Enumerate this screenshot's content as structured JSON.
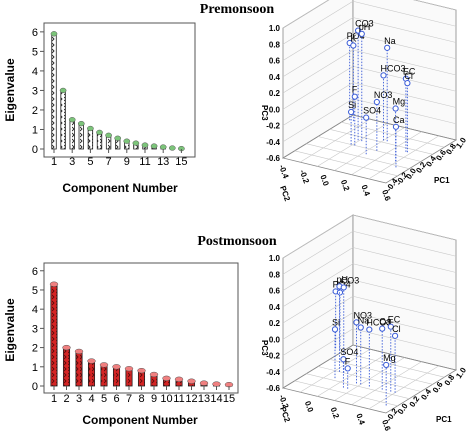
{
  "titles": {
    "top": "Premonsoon",
    "bottom": "Postmonsoon"
  },
  "chart_data": [
    {
      "type": "bar",
      "panel": "premonsoon-scree",
      "xlabel": "Component Number",
      "ylabel": "Eigenvalue",
      "categories": [
        "1",
        "2",
        "3",
        "4",
        "5",
        "6",
        "7",
        "8",
        "9",
        "10",
        "11",
        "12",
        "13",
        "14",
        "15"
      ],
      "x_tick_labels": [
        "1",
        "3",
        "5",
        "7",
        "9",
        "11",
        "13",
        "15"
      ],
      "values": [
        5.9,
        3.0,
        1.5,
        1.3,
        1.05,
        0.85,
        0.7,
        0.55,
        0.4,
        0.3,
        0.2,
        0.15,
        0.1,
        0.05,
        0.02
      ],
      "y_ticks": [
        0,
        1,
        2,
        3,
        4,
        5,
        6
      ],
      "ylim": [
        0,
        6.3
      ],
      "grid": false,
      "bar_color": "#ffffff",
      "marker_color": "#7cc47a"
    },
    {
      "type": "scatter3d",
      "panel": "premonsoon-loadings",
      "xlabel": "PC1",
      "ylabel": "PC2",
      "zlabel": "PC3",
      "z_ticks": [
        "-0.6",
        "-0.4",
        "-0.2",
        "0.0",
        "0.2",
        "0.4",
        "0.6",
        "0.8",
        "1.0"
      ],
      "x_ticks": [
        "-0.4",
        "-0.2",
        "0.0",
        "0.2",
        "0.4",
        "0.6",
        "0.8",
        "1.0"
      ],
      "y_ticks": [
        "-0.4",
        "-0.2",
        "0.0",
        "0.2",
        "0.4",
        "0.6"
      ],
      "marker_color": "#3a5cd8",
      "points": [
        {
          "label": "PO4",
          "pc1": -0.35,
          "pc2": 0.5,
          "pc3": 0.35
        },
        {
          "label": "K",
          "pc1": -0.3,
          "pc2": 0.5,
          "pc3": 0.33
        },
        {
          "label": "CO3",
          "pc1": 0.05,
          "pc2": 0.2,
          "pc3": 0.75
        },
        {
          "label": "pH",
          "pc1": 0.1,
          "pc2": 0.2,
          "pc3": 0.72
        },
        {
          "label": "Na",
          "pc1": 0.35,
          "pc2": 0.3,
          "pc3": 0.55
        },
        {
          "label": "EC",
          "pc1": 0.7,
          "pc2": 0.2,
          "pc3": 0.3
        },
        {
          "label": "Cl",
          "pc1": 0.72,
          "pc2": 0.2,
          "pc3": 0.25
        },
        {
          "label": "HCO3",
          "pc1": 0.3,
          "pc2": 0.3,
          "pc3": 0.2
        },
        {
          "label": "Mg",
          "pc1": 0.75,
          "pc2": 0.0,
          "pc3": 0.05
        },
        {
          "label": "F",
          "pc1": 0.1,
          "pc2": 0.1,
          "pc3": 0.0
        },
        {
          "label": "NO3",
          "pc1": 0.4,
          "pc2": 0.1,
          "pc3": 0.0
        },
        {
          "label": "Ca",
          "pc1": 0.85,
          "pc2": -0.1,
          "pc3": -0.1
        },
        {
          "label": "Si",
          "pc1": 0.05,
          "pc2": 0.1,
          "pc3": -0.2
        },
        {
          "label": "SO4",
          "pc1": 0.35,
          "pc2": 0.0,
          "pc3": -0.15
        }
      ]
    },
    {
      "type": "bar",
      "panel": "postmonsoon-scree",
      "xlabel": "Component Number",
      "ylabel": "Eigenvalue",
      "categories": [
        "1",
        "2",
        "3",
        "4",
        "5",
        "6",
        "7",
        "8",
        "9",
        "10",
        "11",
        "12",
        "13",
        "14",
        "15"
      ],
      "x_tick_labels": [
        "1",
        "2",
        "3",
        "4",
        "5",
        "6",
        "7",
        "8",
        "9",
        "10",
        "11",
        "12",
        "13",
        "14",
        "15"
      ],
      "values": [
        5.3,
        2.0,
        1.8,
        1.3,
        1.1,
        1.0,
        0.9,
        0.8,
        0.6,
        0.4,
        0.35,
        0.25,
        0.15,
        0.1,
        0.07
      ],
      "y_ticks": [
        0,
        1,
        2,
        3,
        4,
        5,
        6
      ],
      "ylim": [
        0,
        6.3
      ],
      "grid": false,
      "bar_color": "#d42424",
      "marker_color": "#f08080"
    },
    {
      "type": "scatter3d",
      "panel": "postmonsoon-loadings",
      "xlabel": "PC1",
      "ylabel": "PC2",
      "zlabel": "PC3",
      "z_ticks": [
        "-0.6",
        "-0.4",
        "-0.2",
        "0.0",
        "0.2",
        "0.4",
        "0.6",
        "0.8",
        "1.0"
      ],
      "x_ticks": [
        "-0.2",
        "0.0",
        "0.2",
        "0.4",
        "0.6",
        "0.8",
        "1.0"
      ],
      "y_ticks": [
        "-0.2",
        "0.0",
        "0.2",
        "0.4",
        "0.6"
      ],
      "marker_color": "#3a5cd8",
      "points": [
        {
          "label": "PO4",
          "pc1": -0.3,
          "pc2": 0.5,
          "pc3": 0.1
        },
        {
          "label": "K",
          "pc1": -0.25,
          "pc2": 0.5,
          "pc3": 0.1
        },
        {
          "label": "pH",
          "pc1": 0.05,
          "pc2": 0.2,
          "pc3": 0.45
        },
        {
          "label": "CO3",
          "pc1": 0.1,
          "pc2": 0.2,
          "pc3": 0.45
        },
        {
          "label": "Si",
          "pc1": 0.1,
          "pc2": 0.1,
          "pc3": 0.0
        },
        {
          "label": "NO3",
          "pc1": 0.35,
          "pc2": 0.1,
          "pc3": 0.15
        },
        {
          "label": "Na",
          "pc1": 0.4,
          "pc2": 0.1,
          "pc3": 0.1
        },
        {
          "label": "HCO3",
          "pc1": 0.5,
          "pc2": 0.1,
          "pc3": 0.1
        },
        {
          "label": "Ca",
          "pc1": 0.65,
          "pc2": 0.1,
          "pc3": 0.15
        },
        {
          "label": "EC",
          "pc1": 0.75,
          "pc2": 0.1,
          "pc3": 0.2
        },
        {
          "label": "Cl",
          "pc1": 0.8,
          "pc2": 0.1,
          "pc3": 0.1
        },
        {
          "label": "SO4",
          "pc1": 0.3,
          "pc2": 0.0,
          "pc3": -0.25
        },
        {
          "label": "F",
          "pc1": 0.35,
          "pc2": 0.0,
          "pc3": -0.35
        },
        {
          "label": "Mg",
          "pc1": 0.9,
          "pc2": -0.1,
          "pc3": -0.1
        }
      ]
    }
  ]
}
